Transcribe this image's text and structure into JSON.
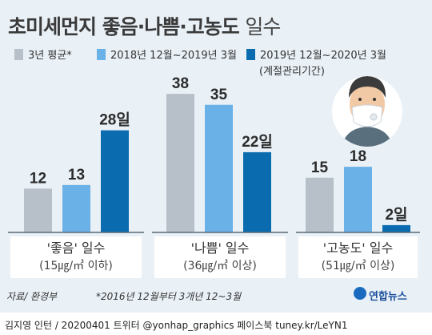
{
  "chart_data": {
    "type": "bar",
    "title": "초미세먼지 좋음·나쁨·고농도",
    "title_suffix": "일수",
    "series": [
      {
        "name": "3년 평균*",
        "color": "#b7c0c8",
        "values": [
          12,
          38,
          15
        ],
        "labels": [
          "12",
          "38",
          "15"
        ]
      },
      {
        "name": "2018년 12월~2019년 3월",
        "color": "#6ab1e7",
        "values": [
          13,
          35,
          18
        ],
        "labels": [
          "13",
          "35",
          "18"
        ]
      },
      {
        "name": "2019년 12월~2020년 3월",
        "color": "#0a6cae",
        "values": [
          28,
          22,
          2
        ],
        "labels": [
          "28일",
          "22일",
          "2일"
        ]
      }
    ],
    "series_note": "(계절관리기간)",
    "groups": [
      {
        "label": "'좋음' 일수",
        "sublabel": "(15㎍/㎥ 이하)"
      },
      {
        "label": "'나쁨' 일수",
        "sublabel": "(36㎍/㎥ 이상)"
      },
      {
        "label": "'고농도' 일수",
        "sublabel": "(51㎍/㎥ 이상)"
      }
    ],
    "source": "자료/ 환경부",
    "footnote": "*2016년 12월부터 3개년 12~3월",
    "brand": "연합뉴스",
    "credit": "김지영 인턴 / 20200401  트위터 @yonhap_graphics  페이스북 tuney.kr/LeYN1",
    "colors": {
      "background": "#e9f0f6",
      "label_box": "#ffffff"
    }
  }
}
